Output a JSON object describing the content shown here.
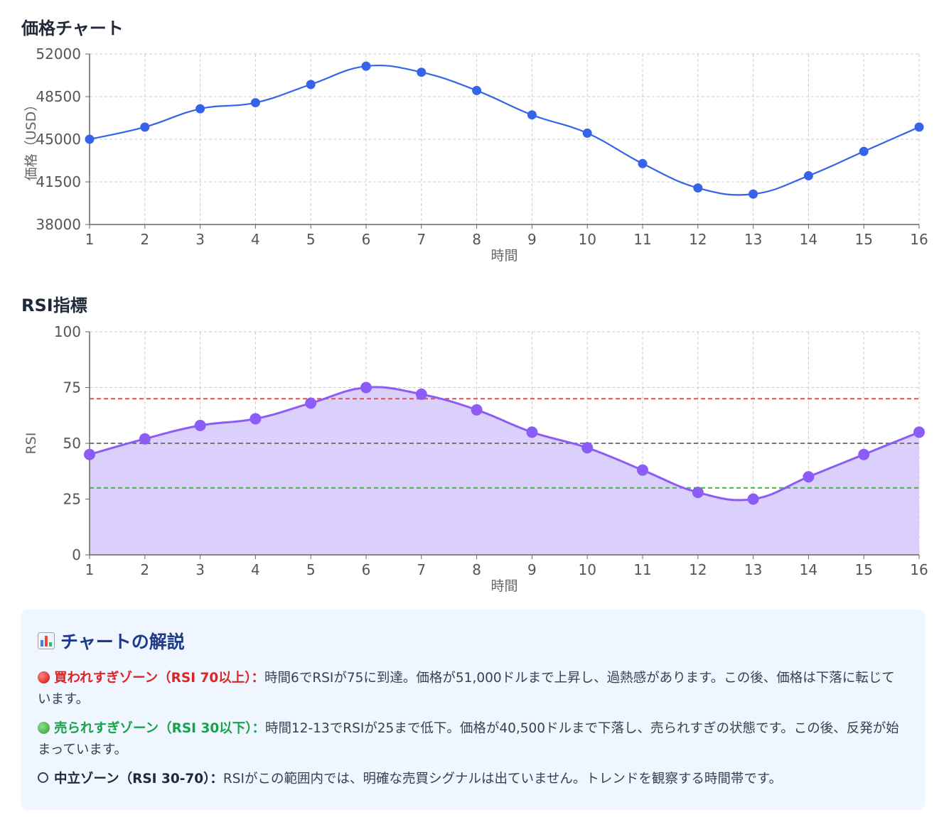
{
  "price_section": {
    "title": "価格チャート"
  },
  "rsi_section": {
    "title": "RSI指標"
  },
  "explanation": {
    "icon": "bar-chart-icon",
    "title": "チャートの解説",
    "overbought": {
      "label": "買われすぎゾーン（RSI 70以上）：",
      "text": "時間6でRSIが75に到達。価格が51,000ドルまで上昇し、過熱感があります。この後、価格は下落に転じています。"
    },
    "oversold": {
      "label": "売られすぎゾーン（RSI 30以下）：",
      "text": "時間12-13でRSIが25まで低下。価格が40,500ドルまで下落し、売られすぎの状態です。この後、反発が始まっています。"
    },
    "neutral": {
      "label": "中立ゾーン（RSI 30-70）：",
      "text": "RSIがこの範囲内では、明確な売買シグナルは出ていません。トレンドを観察する時間帯です。"
    }
  },
  "chart_data": [
    {
      "type": "line",
      "title": "価格チャート",
      "xlabel": "時間",
      "ylabel": "価格（USD）",
      "x": [
        1,
        2,
        3,
        4,
        5,
        6,
        7,
        8,
        9,
        10,
        11,
        12,
        13,
        14,
        15,
        16
      ],
      "ylim": [
        38000,
        52000
      ],
      "yticks": [
        38000,
        41500,
        45000,
        48500,
        52000
      ],
      "grid": true,
      "color": "#3563e9",
      "series": [
        {
          "values": [
            45000,
            46000,
            47500,
            48000,
            49500,
            51000,
            50500,
            49000,
            47000,
            45500,
            43000,
            41000,
            40500,
            42000,
            44000,
            46000
          ]
        }
      ]
    },
    {
      "type": "area",
      "title": "RSI指標",
      "xlabel": "時間",
      "ylabel": "RSI",
      "x": [
        1,
        2,
        3,
        4,
        5,
        6,
        7,
        8,
        9,
        10,
        11,
        12,
        13,
        14,
        15,
        16
      ],
      "ylim": [
        0,
        100
      ],
      "yticks": [
        0,
        25,
        50,
        75,
        100
      ],
      "grid": true,
      "color": "#8b5cf6",
      "fill": "#d9ccfb",
      "reference_lines": [
        {
          "value": 70,
          "color": "#e05252"
        },
        {
          "value": 50,
          "color": "#777777"
        },
        {
          "value": 30,
          "color": "#4caf50"
        }
      ],
      "series": [
        {
          "values": [
            45,
            52,
            58,
            61,
            68,
            75,
            72,
            65,
            55,
            48,
            38,
            28,
            25,
            35,
            45,
            55
          ]
        }
      ]
    }
  ]
}
